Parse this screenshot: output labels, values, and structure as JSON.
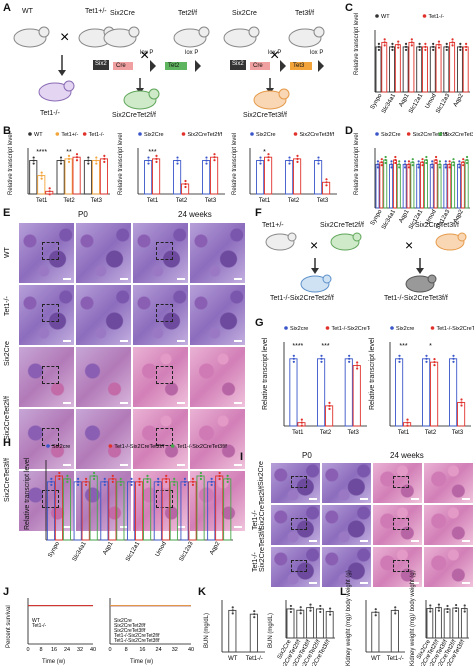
{
  "panels": {
    "A": {
      "letter": "A",
      "cross1": {
        "parent1": "WT",
        "parent2": "Tet1+/-",
        "offspring": "Tet1-/-"
      },
      "cross2": {
        "parent": "Six2Cre",
        "parent2": "Tet2f/f",
        "gene_boxes": [
          "Six2",
          "Cre",
          "lox P",
          "Tet2",
          "lox P"
        ],
        "offspring": "Six2CreTet2f/f"
      },
      "cross3": {
        "parent": "Six2Cre",
        "parent2": "Tet3f/f",
        "gene_boxes": [
          "Six2",
          "Cre",
          "lox P",
          "Tet3",
          "lox P"
        ],
        "offspring": "Six2CreTet3f/f"
      }
    },
    "B": {
      "letter": "B",
      "ylabel": "Relative transcript level"
    },
    "C": {
      "letter": "C",
      "ylabel": "Relative transcript level"
    },
    "D": {
      "letter": "D",
      "ylabel": "Relative transcript level"
    },
    "E": {
      "letter": "E",
      "col1": "P0",
      "col2": "24 weeks",
      "rows": [
        "WT",
        "Tet1-/-",
        "Six2Cre",
        "Six2CreTet2f/f",
        "Six2CreTet3f/f"
      ]
    },
    "F": {
      "letter": "F",
      "parent1": "Tet1+/-",
      "parent2": "Six2CreTet2f/f",
      "parent3": "Six2CreTet3f/f",
      "offspring1": "Tet1-/-Six2CreTet2f/f",
      "offspring2": "Tet1-/-Six2CreTet3f/f"
    },
    "G": {
      "letter": "G",
      "ylabel": "Relative transcript level"
    },
    "H": {
      "letter": "H",
      "ylabel": "Relative transcript level"
    },
    "I": {
      "letter": "I",
      "col1": "P0",
      "col2": "24 weeks",
      "rows": [
        "Six2Cre",
        "Tet1-/- Six2CreTet2f/f",
        "Tet1-/- Six2CreTet3f/f"
      ]
    },
    "J": {
      "letter": "J",
      "ylabel": "Percent survival",
      "xlabel": "Time (w)"
    },
    "K": {
      "letter": "K",
      "ylabel": "BUN (mg/dL)"
    },
    "L": {
      "letter": "L",
      "ylabel1": "Kidney weight (mg)/ body weight (g)",
      "ylabel2": "Kidney weight (mg)/ body weight (g)"
    }
  },
  "colors": {
    "wt": "#333333",
    "tet1": "#e0312b",
    "six2cre": "#3a56c9",
    "tet2": "#e0312b",
    "tet3": "#e0312b",
    "orange": "#f2a33a",
    "green": "#45a849",
    "purple": "#7b3fb5"
  },
  "chart_data": [
    {
      "id": "B1",
      "type": "bar",
      "categories": [
        "Tet1",
        "Tet2",
        "Tet3"
      ],
      "series": [
        {
          "name": "WT",
          "values": [
            1.0,
            1.0,
            1.0
          ]
        },
        {
          "name": "Tet1+/-",
          "values": [
            0.55,
            1.05,
            1.0
          ]
        },
        {
          "name": "Tet1-/-",
          "values": [
            0.08,
            1.1,
            1.05
          ]
        }
      ],
      "annotations": [
        "****",
        "**"
      ]
    },
    {
      "id": "B2",
      "type": "bar",
      "categories": [
        "Tet1",
        "Tet2",
        "Tet3"
      ],
      "series": [
        {
          "name": "Six2Cre",
          "values": [
            1.0,
            1.0,
            1.0
          ]
        },
        {
          "name": "Six2CreTet2f/f",
          "values": [
            1.05,
            0.3,
            1.1
          ]
        }
      ],
      "annotations": [
        "***"
      ]
    },
    {
      "id": "B3",
      "type": "bar",
      "categories": [
        "Tet1",
        "Tet2",
        "Tet3"
      ],
      "series": [
        {
          "name": "Six2Cre",
          "values": [
            1.0,
            1.0,
            1.0
          ]
        },
        {
          "name": "Six2CreTet3f/f",
          "values": [
            1.1,
            1.05,
            0.35
          ]
        }
      ],
      "annotations": [
        "*"
      ]
    },
    {
      "id": "C",
      "type": "bar",
      "categories": [
        "Synpo",
        "Slc34a1",
        "Aqp1",
        "Slc12a1",
        "Umod",
        "Slc12a3",
        "Aqp2"
      ],
      "series": [
        {
          "name": "WT",
          "values": [
            1.0,
            1.0,
            1.0,
            1.0,
            1.0,
            1.0,
            1.0
          ]
        },
        {
          "name": "Tet1-/-",
          "values": [
            1.1,
            1.05,
            1.1,
            1.0,
            1.05,
            1.1,
            1.0
          ]
        }
      ]
    },
    {
      "id": "D",
      "type": "bar",
      "categories": [
        "Synpo",
        "Slc34a1",
        "Aqp1",
        "Slc12a1",
        "Umod",
        "Slc12a3",
        "Aqp2"
      ],
      "series": [
        {
          "name": "Six2Cre",
          "values": [
            1.0,
            1.0,
            1.0,
            1.0,
            1.0,
            1.0,
            1.0
          ]
        },
        {
          "name": "Six2CreTet2f/f",
          "values": [
            1.05,
            1.1,
            1.0,
            1.05,
            1.1,
            1.0,
            1.05
          ]
        },
        {
          "name": "Six2CreTet3f/f",
          "values": [
            1.1,
            1.0,
            1.05,
            1.1,
            1.0,
            1.05,
            1.1
          ]
        }
      ]
    },
    {
      "id": "G1",
      "type": "bar",
      "categories": [
        "Tet1",
        "Tet2",
        "Tet3"
      ],
      "series": [
        {
          "name": "Six2cre",
          "values": [
            1.0,
            1.0,
            1.0
          ]
        },
        {
          "name": "Tet1-/-Six2CreTet2f/f",
          "values": [
            0.05,
            0.3,
            0.9
          ]
        }
      ],
      "annotations": [
        "****",
        "***"
      ]
    },
    {
      "id": "G2",
      "type": "bar",
      "categories": [
        "Tet1",
        "Tet2",
        "Tet3"
      ],
      "series": [
        {
          "name": "Six2cre",
          "values": [
            1.0,
            1.0,
            1.0
          ]
        },
        {
          "name": "Tet1-/-Six2CreTet3f/f",
          "values": [
            0.05,
            0.95,
            0.35
          ]
        }
      ],
      "annotations": [
        "***",
        "*"
      ]
    },
    {
      "id": "H",
      "type": "bar",
      "categories": [
        "Synpo",
        "Slc34a1",
        "Aqp1",
        "Slc12a1",
        "Umod",
        "Slc12a3",
        "Aqp2"
      ],
      "series": [
        {
          "name": "Six2cre",
          "values": [
            1.0,
            1.0,
            1.0,
            1.0,
            1.0,
            1.0,
            1.0
          ]
        },
        {
          "name": "Tet1-/-Six2CreTet2f/f",
          "values": [
            1.1,
            1.0,
            1.05,
            1.0,
            1.05,
            1.0,
            1.1
          ]
        },
        {
          "name": "Tet1-/-Six2CreTet3f/f",
          "values": [
            1.05,
            1.1,
            1.0,
            1.05,
            1.0,
            1.1,
            1.05
          ]
        }
      ]
    },
    {
      "id": "J1",
      "type": "line",
      "x": [
        0,
        8,
        16,
        24,
        32,
        40
      ],
      "series": [
        {
          "name": "WT",
          "values": [
            100,
            100,
            100,
            100,
            100,
            100
          ]
        },
        {
          "name": "Tet1-/-",
          "values": [
            100,
            100,
            100,
            100,
            100,
            100
          ]
        }
      ],
      "xlabel": "Time (w)",
      "ylabel": "Percent survival"
    },
    {
      "id": "J2",
      "type": "line",
      "x": [
        0,
        8,
        16,
        24,
        32,
        40
      ],
      "series": [
        {
          "name": "Six2Cre",
          "values": [
            100,
            100,
            100,
            100,
            100,
            100
          ]
        },
        {
          "name": "Six2CreTet2f/f",
          "values": [
            100,
            100,
            100,
            100,
            100,
            100
          ]
        },
        {
          "name": "Six2CreTet3f/f",
          "values": [
            100,
            100,
            100,
            100,
            100,
            100
          ]
        },
        {
          "name": "Tet1-/-Six2CreTet2f/f",
          "values": [
            100,
            100,
            100,
            100,
            100,
            100
          ]
        },
        {
          "name": "Tet1-/-Six2CreTet3f/f",
          "values": [
            100,
            100,
            100,
            100,
            100,
            100
          ]
        }
      ],
      "xlabel": "Time (w)"
    },
    {
      "id": "K1",
      "type": "bar",
      "categories": [
        "WT",
        "Tet1-/-"
      ],
      "values": [
        22,
        20
      ],
      "ylabel": "BUN (mg/dL)"
    },
    {
      "id": "K2",
      "type": "bar",
      "categories": [
        "Six2Cre",
        "Six2CreTet2f/f",
        "Six2CreTet3f/f",
        "Tet1-/-Six2CreTet2f/f",
        "Tet1-/-Six2CreTet3f/f"
      ],
      "values": [
        22,
        21,
        23,
        22,
        20
      ],
      "ylabel": "BUN (mg/dL)"
    },
    {
      "id": "L1",
      "type": "bar",
      "categories": [
        "WT",
        "Tet1-/-"
      ],
      "values": [
        6.5,
        6.8
      ]
    },
    {
      "id": "L2",
      "type": "bar",
      "categories": [
        "Six2Cre",
        "Six2CreTet2f/f",
        "Six2CreTet3f/f",
        "Tet1-/-Six2CreTet2f/f",
        "Tet1-/-Six2CreTet3f/f"
      ],
      "values": [
        6.5,
        6.7,
        6.4,
        6.6,
        6.5
      ]
    }
  ]
}
